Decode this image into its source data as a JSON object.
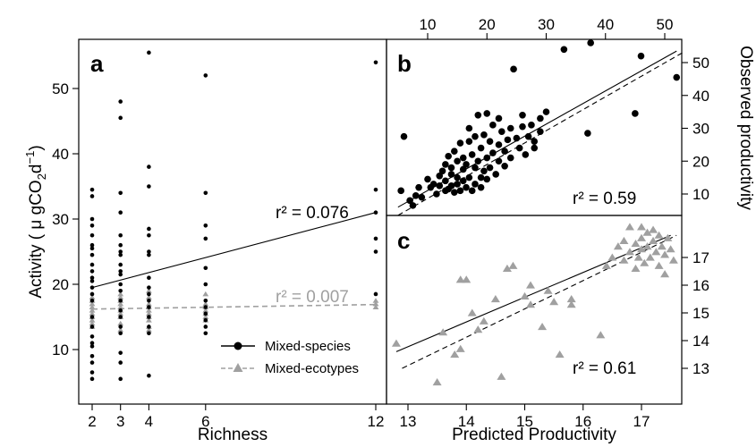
{
  "chart_data": [
    {
      "panel": "a",
      "type": "scatter",
      "xlabel": "Richness",
      "ylabel": "Activity",
      "x_ticks": [
        2,
        3,
        4,
        6,
        12
      ],
      "y_ticks": [
        10,
        20,
        30,
        40,
        50
      ],
      "legend": {
        "placement": "bottom-right",
        "entries": [
          {
            "label": "Mixed-species",
            "color": "#000000",
            "marker": "circle",
            "line": "solid"
          },
          {
            "label": "Mixed-ecotypes",
            "color": "#a0a0a0",
            "marker": "triangle",
            "line": "dashed"
          }
        ]
      },
      "series": [
        {
          "name": "Mixed-species",
          "color": "#000000",
          "r2": "r² = 0.076",
          "fit": [
            [
              2,
              19.5
            ],
            [
              12,
              31
            ]
          ],
          "points": [
            [
              2,
              34.5
            ],
            [
              2,
              33.5
            ],
            [
              2,
              30
            ],
            [
              2,
              29
            ],
            [
              2,
              27.5
            ],
            [
              2,
              26
            ],
            [
              2,
              25.5
            ],
            [
              2,
              24.5
            ],
            [
              2,
              23
            ],
            [
              2,
              22
            ],
            [
              2,
              21
            ],
            [
              2,
              20.5
            ],
            [
              2,
              19.5
            ],
            [
              2,
              18.5
            ],
            [
              2,
              17.5
            ],
            [
              2,
              15
            ],
            [
              2,
              13.5
            ],
            [
              2,
              12
            ],
            [
              2,
              11
            ],
            [
              2,
              10.5
            ],
            [
              2,
              9
            ],
            [
              2,
              8
            ],
            [
              2,
              6.5
            ],
            [
              2,
              5.5
            ],
            [
              3,
              48
            ],
            [
              3,
              45.5
            ],
            [
              3,
              34
            ],
            [
              3,
              31
            ],
            [
              3,
              27.5
            ],
            [
              3,
              26
            ],
            [
              3,
              25
            ],
            [
              3,
              24.5
            ],
            [
              3,
              23
            ],
            [
              3,
              22
            ],
            [
              3,
              21.5
            ],
            [
              3,
              20
            ],
            [
              3,
              19
            ],
            [
              3,
              17.5
            ],
            [
              3,
              16
            ],
            [
              3,
              15
            ],
            [
              3,
              13.5
            ],
            [
              3,
              12.5
            ],
            [
              3,
              9.5
            ],
            [
              3,
              8
            ],
            [
              3,
              5.5
            ],
            [
              4,
              55.5
            ],
            [
              4,
              38
            ],
            [
              4,
              35
            ],
            [
              4,
              28.5
            ],
            [
              4,
              27.5
            ],
            [
              4,
              25
            ],
            [
              4,
              24.5
            ],
            [
              4,
              21
            ],
            [
              4,
              19.5
            ],
            [
              4,
              18.5
            ],
            [
              4,
              17.5
            ],
            [
              4,
              16.5
            ],
            [
              4,
              15
            ],
            [
              4,
              13.5
            ],
            [
              4,
              12.5
            ],
            [
              4,
              6
            ],
            [
              6,
              52
            ],
            [
              6,
              34
            ],
            [
              6,
              29
            ],
            [
              6,
              27
            ],
            [
              6,
              22.5
            ],
            [
              6,
              20
            ],
            [
              6,
              17.5
            ],
            [
              6,
              16.5
            ],
            [
              6,
              15.5
            ],
            [
              6,
              14.5
            ],
            [
              6,
              13.5
            ],
            [
              6,
              12.5
            ],
            [
              12,
              54
            ],
            [
              12,
              34.5
            ],
            [
              12,
              31
            ],
            [
              12,
              27
            ],
            [
              12,
              25
            ],
            [
              12,
              18.5
            ]
          ]
        },
        {
          "name": "Mixed-ecotypes",
          "color": "#a0a0a0",
          "r2": "r² = 0.007",
          "fit": [
            [
              2,
              16.2
            ],
            [
              12,
              16.9
            ]
          ],
          "points": [
            [
              2,
              18
            ],
            [
              2,
              17.5
            ],
            [
              2,
              17
            ],
            [
              2,
              16.5
            ],
            [
              2,
              16
            ],
            [
              2,
              15.5
            ],
            [
              2,
              15
            ],
            [
              2,
              14.5
            ],
            [
              2,
              14
            ],
            [
              2,
              13.5
            ],
            [
              3,
              18.5
            ],
            [
              3,
              18
            ],
            [
              3,
              17.5
            ],
            [
              3,
              17
            ],
            [
              3,
              16.5
            ],
            [
              3,
              16
            ],
            [
              3,
              15.5
            ],
            [
              3,
              15
            ],
            [
              3,
              14
            ],
            [
              3,
              13
            ],
            [
              4,
              19
            ],
            [
              4,
              18
            ],
            [
              4,
              17
            ],
            [
              4,
              16.5
            ],
            [
              4,
              16
            ],
            [
              4,
              15.5
            ],
            [
              4,
              15
            ],
            [
              4,
              14.5
            ],
            [
              4,
              13.5
            ],
            [
              4,
              13
            ],
            [
              6,
              18.5
            ],
            [
              6,
              17
            ],
            [
              6,
              16.5
            ],
            [
              6,
              16
            ],
            [
              6,
              15.5
            ],
            [
              6,
              15
            ],
            [
              6,
              14.5
            ],
            [
              12,
              17.5
            ],
            [
              12,
              17
            ],
            [
              12,
              16.5
            ]
          ]
        }
      ]
    },
    {
      "panel": "b",
      "type": "scatter",
      "xlabel": "",
      "ylabel": "Observed productivity",
      "x_ticks": [
        10,
        20,
        30,
        40,
        50
      ],
      "y_ticks": [
        10,
        20,
        30,
        40,
        50
      ],
      "x_axis_position": "top",
      "y_axis_position": "right",
      "series": [
        {
          "color": "#000000",
          "r2": "r² = 0.59",
          "fit_solid": [
            [
              5,
              6
            ],
            [
              52,
              53.5
            ]
          ],
          "fit_dashed": [
            [
              5,
              3.5
            ],
            [
              53,
              53
            ]
          ],
          "points": [
            [
              5.5,
              11
            ],
            [
              6,
              27.5
            ],
            [
              7,
              8
            ],
            [
              7.5,
              6.5
            ],
            [
              8,
              9.5
            ],
            [
              8.5,
              12
            ],
            [
              9,
              9
            ],
            [
              10,
              14.5
            ],
            [
              10.5,
              12
            ],
            [
              11,
              13
            ],
            [
              11.5,
              10
            ],
            [
              12,
              12.5
            ],
            [
              12,
              15.5
            ],
            [
              12.5,
              17
            ],
            [
              13,
              11
            ],
            [
              13,
              14
            ],
            [
              13,
              19
            ],
            [
              13.5,
              21.5
            ],
            [
              13.5,
              11.5
            ],
            [
              14,
              16
            ],
            [
              14,
              12.5
            ],
            [
              14,
              18
            ],
            [
              14.5,
              10.5
            ],
            [
              14.5,
              23
            ],
            [
              15,
              15
            ],
            [
              15,
              20
            ],
            [
              15,
              13
            ],
            [
              15.5,
              25.5
            ],
            [
              15.5,
              11
            ],
            [
              16,
              14
            ],
            [
              16,
              17.5
            ],
            [
              16,
              21
            ],
            [
              16.5,
              12
            ],
            [
              16.5,
              19
            ],
            [
              17,
              26
            ],
            [
              17,
              15
            ],
            [
              17,
              30
            ],
            [
              17.5,
              11
            ],
            [
              17.5,
              22
            ],
            [
              18,
              18
            ],
            [
              18,
              13
            ],
            [
              18,
              27.5
            ],
            [
              18.5,
              20
            ],
            [
              18.5,
              34
            ],
            [
              19,
              15
            ],
            [
              19,
              24
            ],
            [
              19,
              12
            ],
            [
              19.5,
              17
            ],
            [
              19.5,
              28
            ],
            [
              20,
              21
            ],
            [
              20,
              34.5
            ],
            [
              20,
              14.5
            ],
            [
              20.5,
              26
            ],
            [
              20.5,
              18
            ],
            [
              21,
              31
            ],
            [
              21,
              22.5
            ],
            [
              21.5,
              16
            ],
            [
              22,
              25
            ],
            [
              22,
              33
            ],
            [
              22,
              20
            ],
            [
              22.5,
              29
            ],
            [
              23,
              23
            ],
            [
              23,
              18.5
            ],
            [
              23.5,
              26.5
            ],
            [
              24,
              30
            ],
            [
              24,
              21
            ],
            [
              24.5,
              48
            ],
            [
              25,
              27
            ],
            [
              25.5,
              24
            ],
            [
              26,
              30.5
            ],
            [
              26,
              34
            ],
            [
              26.5,
              22
            ],
            [
              27,
              27.5
            ],
            [
              27.5,
              31
            ],
            [
              28,
              26
            ],
            [
              28,
              24
            ],
            [
              29,
              29
            ],
            [
              29,
              33
            ],
            [
              30,
              35
            ],
            [
              33,
              54
            ],
            [
              37,
              28.5
            ],
            [
              37.5,
              56
            ],
            [
              46,
              52
            ],
            [
              45,
              34.5
            ],
            [
              52,
              45.5
            ]
          ]
        }
      ]
    },
    {
      "panel": "c",
      "type": "scatter",
      "xlabel": "Predicted Productivity",
      "ylabel": "",
      "x_ticks": [
        13,
        14,
        15,
        16,
        17
      ],
      "y_ticks": [
        13,
        14,
        15,
        16,
        17
      ],
      "y_axis_position": "right",
      "series": [
        {
          "color": "#a0a0a0",
          "r2": "r² = 0.61",
          "fit_solid": [
            [
              12.8,
              13.6
            ],
            [
              17.5,
              17.8
            ]
          ],
          "fit_dashed": [
            [
              12.9,
              13.0
            ],
            [
              17.6,
              17.8
            ]
          ],
          "points": [
            [
              12.8,
              13.9
            ],
            [
              13.5,
              12.5
            ],
            [
              13.6,
              14.3
            ],
            [
              13.8,
              13.5
            ],
            [
              13.9,
              13.7
            ],
            [
              13.9,
              16.2
            ],
            [
              14.0,
              16.2
            ],
            [
              14.1,
              15.0
            ],
            [
              14.2,
              14.4
            ],
            [
              14.3,
              14.7
            ],
            [
              14.5,
              15.5
            ],
            [
              14.6,
              12.7
            ],
            [
              14.8,
              16.7
            ],
            [
              14.7,
              16.6
            ],
            [
              15.0,
              15.6
            ],
            [
              15.1,
              15.3
            ],
            [
              15.1,
              16.0
            ],
            [
              15.3,
              14.5
            ],
            [
              15.4,
              15.8
            ],
            [
              15.5,
              15.4
            ],
            [
              15.6,
              13.5
            ],
            [
              15.8,
              15.5
            ],
            [
              15.8,
              15.3
            ],
            [
              16.3,
              14.2
            ],
            [
              16.4,
              16.7
            ],
            [
              16.5,
              17.0
            ],
            [
              16.6,
              17.4
            ],
            [
              16.7,
              17.6
            ],
            [
              16.7,
              16.9
            ],
            [
              16.8,
              18.1
            ],
            [
              16.8,
              17.2
            ],
            [
              16.9,
              17.5
            ],
            [
              16.9,
              16.6
            ],
            [
              16.95,
              17.0
            ],
            [
              17.0,
              18.1
            ],
            [
              17.0,
              17.7
            ],
            [
              17.0,
              17.3
            ],
            [
              17.05,
              16.8
            ],
            [
              17.1,
              17.9
            ],
            [
              17.1,
              17.4
            ],
            [
              17.15,
              17.0
            ],
            [
              17.2,
              18.0
            ],
            [
              17.2,
              17.6
            ],
            [
              17.25,
              17.2
            ],
            [
              17.3,
              16.7
            ],
            [
              17.3,
              17.8
            ],
            [
              17.35,
              17.4
            ],
            [
              17.4,
              17.1
            ],
            [
              17.4,
              16.4
            ],
            [
              17.45,
              17.7
            ],
            [
              17.5,
              17.3
            ],
            [
              17.55,
              16.9
            ]
          ]
        }
      ]
    }
  ]
}
